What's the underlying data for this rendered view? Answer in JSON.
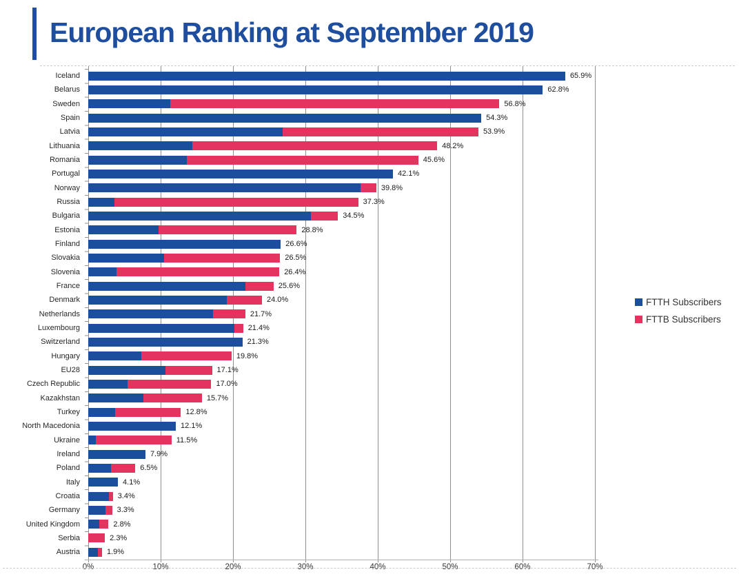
{
  "title": "European Ranking at September 2019",
  "legend": {
    "ftth_label": "FTTH Subscribers",
    "fttb_label": "FTTB Subscribers"
  },
  "colors": {
    "ftth": "#1C4E9E",
    "fttb": "#E4335F",
    "title": "#1F4E9E",
    "gridline": "#8F8F8F"
  },
  "chart_data": {
    "type": "bar",
    "orientation": "horizontal",
    "stacked": true,
    "title": "European Ranking at September 2019",
    "xlabel": "",
    "ylabel": "",
    "xlim": [
      0,
      70
    ],
    "x_ticks": [
      "0%",
      "10%",
      "20%",
      "30%",
      "40%",
      "50%",
      "60%",
      "70%"
    ],
    "grid": "vertical",
    "legend_position": "right",
    "categories": [
      "Iceland",
      "Belarus",
      "Sweden",
      "Spain",
      "Latvia",
      "Lithuania",
      "Romania",
      "Portugal",
      "Norway",
      "Russia",
      "Bulgaria",
      "Estonia",
      "Finland",
      "Slovakia",
      "Slovenia",
      "France",
      "Denmark",
      "Netherlands",
      "Luxembourg",
      "Switzerland",
      "Hungary",
      "EU28",
      "Czech Republic",
      "Kazakhstan",
      "Turkey",
      "North Macedonia",
      "Ukraine",
      "Ireland",
      "Poland",
      "Italy",
      "Croatia",
      "Germany",
      "United Kingdom",
      "Serbia",
      "Austria"
    ],
    "series": [
      {
        "name": "FTTH Subscribers",
        "color": "#1C4E9E",
        "values": [
          65.9,
          62.8,
          11.3,
          54.3,
          26.9,
          14.4,
          13.6,
          42.1,
          37.6,
          3.6,
          30.8,
          9.7,
          26.6,
          10.5,
          3.9,
          21.7,
          19.1,
          17.2,
          20.2,
          21.3,
          7.3,
          10.7,
          5.4,
          7.6,
          3.7,
          12.1,
          1.0,
          7.9,
          3.1,
          4.1,
          2.9,
          2.4,
          1.5,
          0.0,
          1.3
        ]
      },
      {
        "name": "FTTB Subscribers",
        "color": "#E4335F",
        "values": [
          0.0,
          0.0,
          45.5,
          0.0,
          27.0,
          33.8,
          32.0,
          0.0,
          2.2,
          33.7,
          3.7,
          19.1,
          0.0,
          16.0,
          22.5,
          3.9,
          4.9,
          4.5,
          1.2,
          0.0,
          12.5,
          6.4,
          11.6,
          8.1,
          9.1,
          0.0,
          10.5,
          0.0,
          3.4,
          0.0,
          0.5,
          0.9,
          1.3,
          2.3,
          0.6
        ]
      }
    ],
    "total_labels": [
      "65.9%",
      "62.8%",
      "56.8%",
      "54.3%",
      "53.9%",
      "48.2%",
      "45.6%",
      "42.1%",
      "39.8%",
      "37.3%",
      "34.5%",
      "28.8%",
      "26.6%",
      "26.5%",
      "26.4%",
      "25.6%",
      "24.0%",
      "21.7%",
      "21.4%",
      "21.3%",
      "19.8%",
      "17.1%",
      "17.0%",
      "15.7%",
      "12.8%",
      "12.1%",
      "11.5%",
      "7.9%",
      "6.5%",
      "4.1%",
      "3.4%",
      "3.3%",
      "2.8%",
      "2.3%",
      "1.9%"
    ]
  }
}
